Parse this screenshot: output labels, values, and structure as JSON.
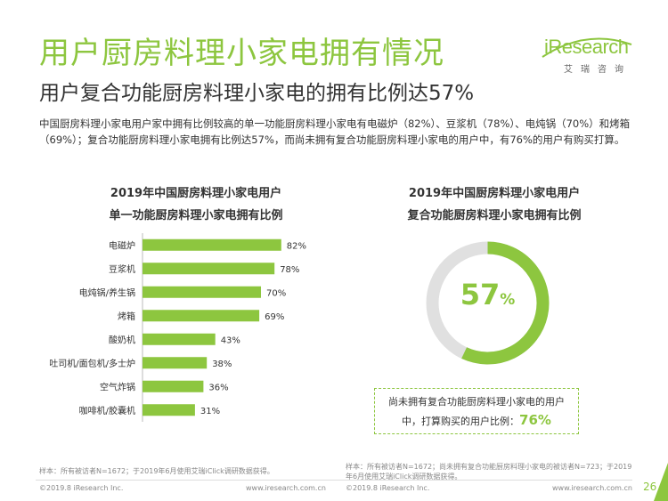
{
  "title": "用户厨房料理小家电拥有情况",
  "subtitle": "用户复合功能厨房料理小家电的拥有比例达57%",
  "intro": "中国厨房料理小家电用户家中拥有比例较高的单一功能厨房料理小家电有电磁炉（82%）、豆浆机（78%）、电炖锅（70%）和烤箱（69%）；复合功能厨房料理小家电拥有比例达57%，而尚未拥有复合功能厨房料理小家电的用户中，有76%的用户有购买打算。",
  "logo": {
    "name": "iResearch",
    "sub": "艾瑞咨询"
  },
  "colors": {
    "accent": "#8dc63f",
    "donut_rest": "#e0e0e0"
  },
  "chart_data": [
    {
      "type": "bar",
      "orientation": "horizontal",
      "title_lines": [
        "2019年中国厨房料理小家电用户",
        "单一功能厨房料理小家电拥有比例"
      ],
      "categories": [
        "电磁炉",
        "豆浆机",
        "电炖锅/养生锅",
        "烤箱",
        "酸奶机",
        "吐司机/面包机/多士炉",
        "空气炸锅",
        "咖啡机/胶囊机"
      ],
      "values": [
        82,
        78,
        70,
        69,
        43,
        38,
        36,
        31
      ],
      "value_labels": [
        "82%",
        "78%",
        "70%",
        "69%",
        "43%",
        "38%",
        "36%",
        "31%"
      ],
      "unit": "%",
      "xlim": [
        0,
        100
      ]
    },
    {
      "type": "pie",
      "style": "donut",
      "title_lines": [
        "2019年中国厨房料理小家电用户",
        "复合功能厨房料理小家电拥有比例"
      ],
      "value": 57,
      "center_number": "57",
      "center_unit": "%"
    }
  ],
  "note": {
    "line1": "尚未拥有复合功能厨房料理小家电的用户",
    "line2": "中，打算购买的用户比例：",
    "value": "76%"
  },
  "footnotes": {
    "left": "样本：所有被访者N=1672；于2019年6月使用艾瑞iClick调研数据获得。",
    "right": "样本：所有被访者N=1672；尚未拥有复合功能厨房料理小家电的被访者N=723；于2019年6月使用艾瑞iClick调研数据获得。"
  },
  "footer": {
    "copyright": "©2019.8 iResearch Inc.",
    "url": "www.iresearch.com.cn",
    "page": "26"
  }
}
